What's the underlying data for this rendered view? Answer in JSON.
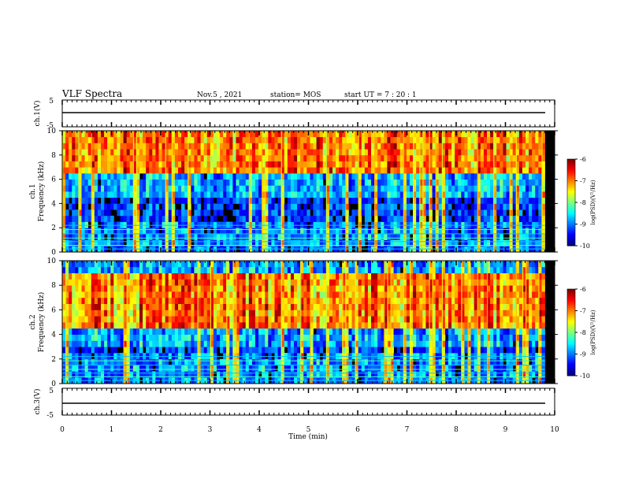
{
  "header": {
    "title": "VLF Spectra",
    "date": "Nov.5 , 2021",
    "station": "station= MOS",
    "start": "start UT = 7 : 20 : 1"
  },
  "chart_data": [
    {
      "type": "line",
      "panel": "ch1-waveform",
      "ylabel": "ch.1(V)",
      "y_ticks": [
        "5",
        "-5"
      ],
      "ylim": [
        -5,
        5
      ],
      "xlim": [
        0,
        10
      ],
      "series": [
        {
          "x": [
            0,
            10
          ],
          "values": [
            0,
            0
          ]
        }
      ]
    },
    {
      "type": "heatmap",
      "panel": "ch1-spectrogram",
      "ylabel": "Frequency (kHz)",
      "channel_label": "ch.1",
      "y_ticks": [
        "0",
        "2",
        "4",
        "6",
        "8",
        "10"
      ],
      "ylim": [
        0,
        10
      ],
      "xlim": [
        0,
        10
      ],
      "colorbar": {
        "label": "log(PSD)(V²/Hz)",
        "ticks": [
          "-6",
          "-7",
          "-8",
          "-9",
          "-10"
        ],
        "range": [
          -10,
          -6
        ]
      },
      "horizontal_lines_khz": [
        0.25,
        0.55,
        0.85,
        1.15,
        1.5,
        1.85,
        2.2
      ]
    },
    {
      "type": "heatmap",
      "panel": "ch2-spectrogram",
      "ylabel": "Frequency (kHz)",
      "channel_label": "ch.2",
      "y_ticks": [
        "0",
        "2",
        "4",
        "6",
        "8",
        "10"
      ],
      "ylim": [
        0,
        10
      ],
      "xlim": [
        0,
        10
      ],
      "colorbar": {
        "label": "log(PSD)(V²/Hz)",
        "ticks": [
          "-6",
          "-7",
          "-8",
          "-9",
          "-10"
        ],
        "range": [
          -10,
          -6
        ]
      },
      "horizontal_lines_khz": [
        0.25,
        0.55,
        0.85,
        1.15,
        1.5,
        1.85,
        2.2
      ]
    },
    {
      "type": "line",
      "panel": "ch3-waveform",
      "ylabel": "ch.3(V)",
      "y_ticks": [
        "5",
        "-5"
      ],
      "ylim": [
        -5,
        5
      ],
      "xlim": [
        0,
        10
      ],
      "series": [
        {
          "x": [
            0,
            10
          ],
          "values": [
            0,
            0
          ]
        }
      ]
    }
  ],
  "x_axis": {
    "label": "Time (min)",
    "ticks": [
      "0",
      "1",
      "2",
      "3",
      "4",
      "5",
      "6",
      "7",
      "8",
      "9",
      "10"
    ],
    "range": [
      0,
      10
    ],
    "data_end": 9.8
  }
}
